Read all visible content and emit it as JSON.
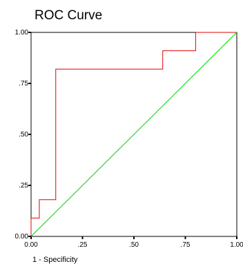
{
  "chart_data": {
    "type": "line",
    "title": "ROC Curve",
    "xlabel": "1 - Specificity",
    "ylabel": "",
    "xlim": [
      0,
      1
    ],
    "ylim": [
      0,
      1
    ],
    "x_ticks": [
      0,
      0.25,
      0.5,
      0.75,
      1
    ],
    "y_ticks": [
      0,
      0.25,
      0.5,
      0.75,
      1
    ],
    "x_tick_labels": [
      "0.00",
      ".25",
      ".50",
      ".75",
      "1.00"
    ],
    "y_tick_labels": [
      "0.00",
      ".25",
      ".50",
      ".75",
      "1.00"
    ],
    "grid": false,
    "series": [
      {
        "color": "#e00000",
        "style": "step",
        "x": [
          0,
          0,
          0.04,
          0.04,
          0.12,
          0.12,
          0.64,
          0.64,
          0.8,
          0.8,
          1.0
        ],
        "y": [
          0,
          0.09,
          0.09,
          0.18,
          0.18,
          0.82,
          0.82,
          0.91,
          0.91,
          1.0,
          1.0
        ]
      },
      {
        "color": "#00d000",
        "style": "line",
        "x": [
          0,
          1
        ],
        "y": [
          0,
          1
        ]
      }
    ]
  }
}
